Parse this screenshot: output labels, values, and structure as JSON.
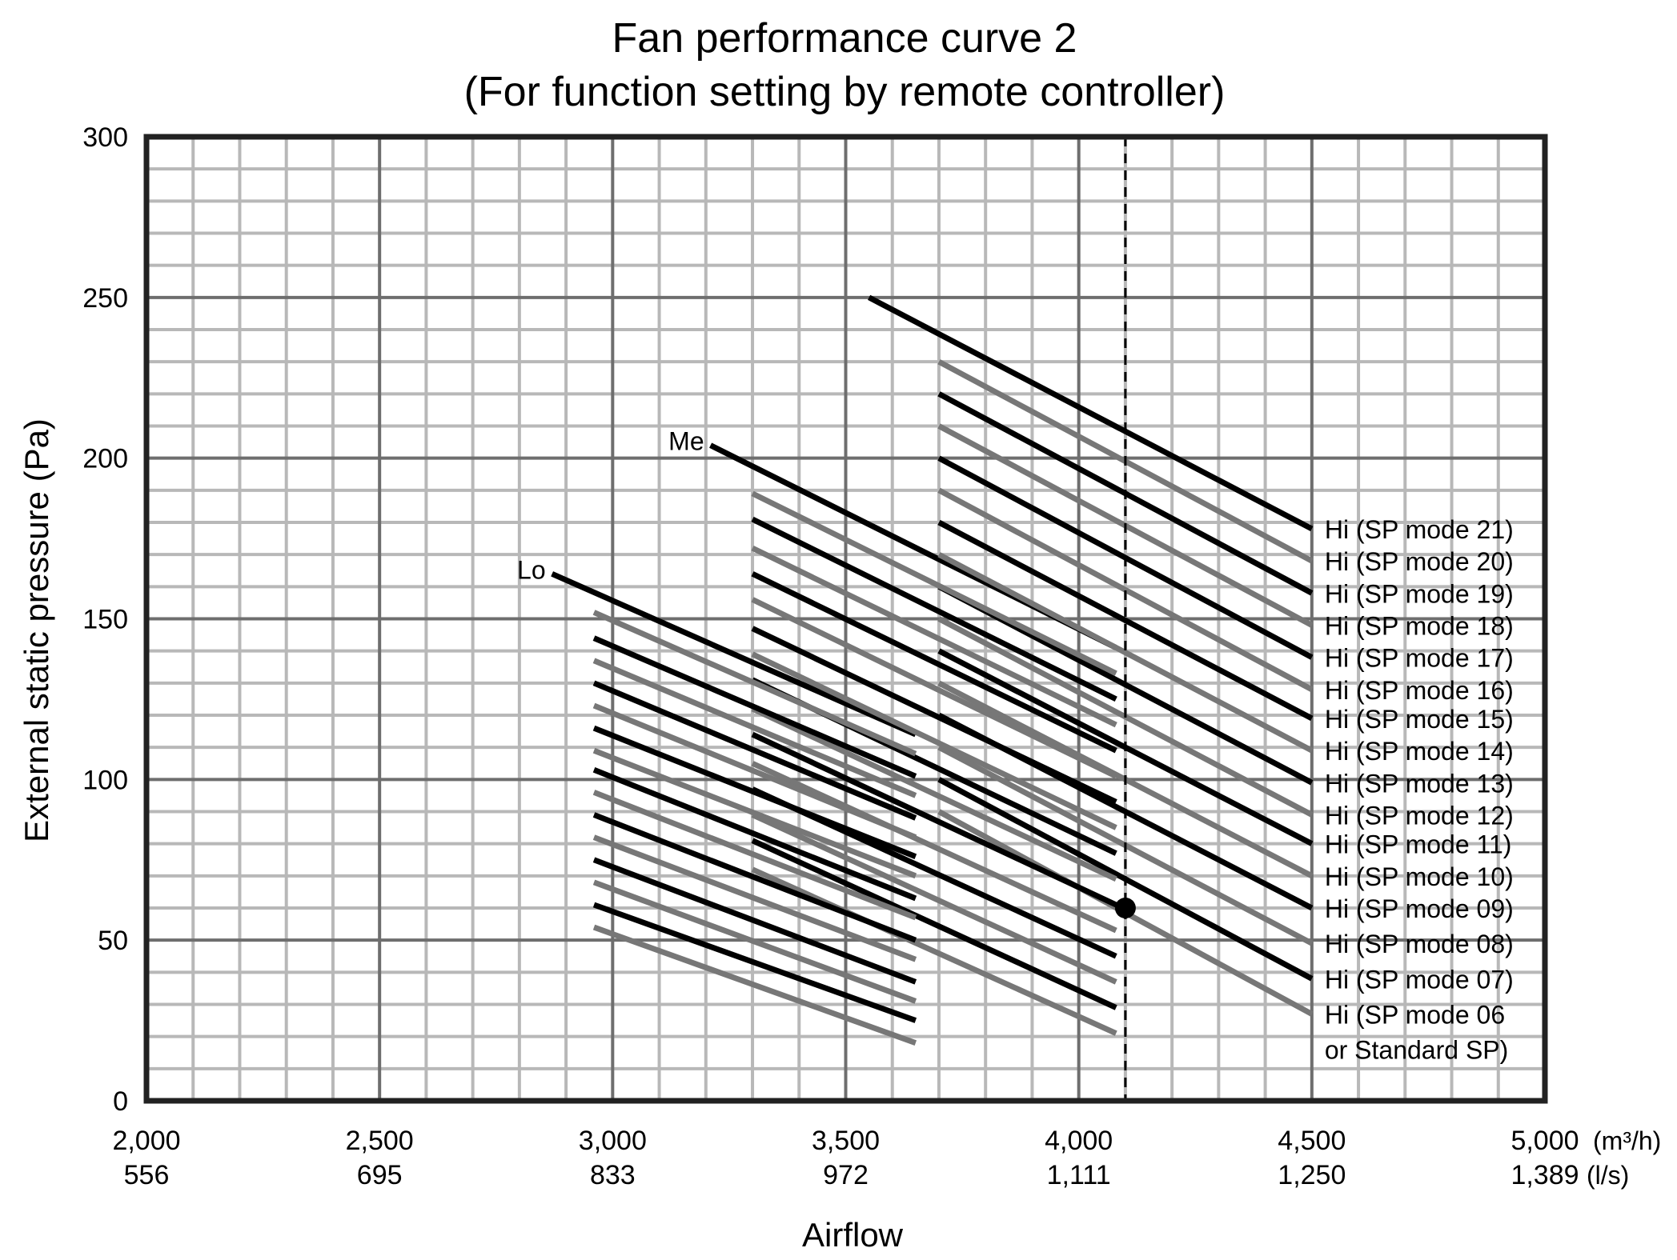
{
  "chart_data": {
    "type": "line",
    "title": [
      "Fan performance curve 2",
      "(For function setting by remote controller)"
    ],
    "ylabel": "External static pressure (Pa)",
    "xlabel": "Airflow",
    "xlim": [
      2000,
      5000
    ],
    "ylim": [
      0,
      300
    ],
    "grid": true,
    "xticks": [
      {
        "value": 2000,
        "label": "2,000",
        "label2": "556"
      },
      {
        "value": 2500,
        "label": "2,500",
        "label2": "695"
      },
      {
        "value": 3000,
        "label": "3,000",
        "label2": "833"
      },
      {
        "value": 3500,
        "label": "3,500",
        "label2": "972"
      },
      {
        "value": 4000,
        "label": "4,000",
        "label2": "1,111"
      },
      {
        "value": 4500,
        "label": "4,500",
        "label2": "1,250"
      },
      {
        "value": 5000,
        "label": "5,000",
        "label2": "1,389"
      }
    ],
    "xunits": [
      "(m³/h)",
      "(l/s)"
    ],
    "yticks": [
      {
        "value": 0,
        "label": "0"
      },
      {
        "value": 50,
        "label": "50"
      },
      {
        "value": 100,
        "label": "100"
      },
      {
        "value": 150,
        "label": "150"
      },
      {
        "value": 200,
        "label": "200"
      },
      {
        "value": 250,
        "label": "250"
      },
      {
        "value": 300,
        "label": "300"
      }
    ],
    "reference_line_x": 4100,
    "marker_point": {
      "x": 4100,
      "y": 60
    },
    "curves": [
      {
        "label": "Lo",
        "color": "#000000",
        "x": [
          2870,
          3650
        ],
        "y": [
          164,
          114
        ]
      },
      {
        "label": "Me",
        "color": "#000000",
        "x": [
          3210,
          4080
        ],
        "y": [
          204,
          141
        ]
      },
      {
        "label": "Hi (SP mode 21)",
        "color": "#000000",
        "x": [
          3550,
          4500
        ],
        "y": [
          250,
          178
        ]
      },
      {
        "label": "Hi (SP mode 20)",
        "color": "#777777",
        "x": [
          3700,
          4500
        ],
        "y": [
          230,
          168
        ]
      },
      {
        "label": "Hi (SP mode 19)",
        "color": "#000000",
        "x": [
          3700,
          4500
        ],
        "y": [
          220,
          158
        ]
      },
      {
        "label": "Hi (SP mode 18)",
        "color": "#777777",
        "x": [
          3700,
          4500
        ],
        "y": [
          210,
          148
        ]
      },
      {
        "label": "Hi (SP mode 17)",
        "color": "#000000",
        "x": [
          3700,
          4500
        ],
        "y": [
          200,
          138
        ]
      },
      {
        "label": "Hi (SP mode 16)",
        "color": "#777777",
        "x": [
          3700,
          4500
        ],
        "y": [
          190,
          128
        ]
      },
      {
        "label": "Hi (SP mode 15)",
        "color": "#000000",
        "x": [
          3700,
          4500
        ],
        "y": [
          180,
          119
        ]
      },
      {
        "label": "Hi (SP mode 14)",
        "color": "#777777",
        "x": [
          3700,
          4500
        ],
        "y": [
          170,
          109
        ]
      },
      {
        "label": "Hi (SP mode 13)",
        "color": "#000000",
        "x": [
          3700,
          4500
        ],
        "y": [
          160,
          99
        ]
      },
      {
        "label": "Hi (SP mode 12)",
        "color": "#777777",
        "x": [
          3700,
          4500
        ],
        "y": [
          150,
          89
        ]
      },
      {
        "label": "Hi (SP mode 11)",
        "color": "#000000",
        "x": [
          3700,
          4500
        ],
        "y": [
          140,
          80
        ]
      },
      {
        "label": "Hi (SP mode 10)",
        "color": "#777777",
        "x": [
          3700,
          4500
        ],
        "y": [
          130,
          70
        ]
      },
      {
        "label": "Hi (SP mode 09)",
        "color": "#000000",
        "x": [
          3700,
          4500
        ],
        "y": [
          120,
          60
        ]
      },
      {
        "label": "Hi (SP mode 08)",
        "color": "#777777",
        "x": [
          3700,
          4500
        ],
        "y": [
          110,
          49
        ]
      },
      {
        "label": "Hi (SP mode 07)",
        "color": "#000000",
        "x": [
          3700,
          4500
        ],
        "y": [
          100,
          38
        ]
      },
      {
        "label": "Hi (SP mode 06 / or Standard SP)",
        "color": "#777777",
        "x": [
          3700,
          4500
        ],
        "y": [
          90,
          27
        ]
      },
      {
        "label": "",
        "color": "#777777",
        "x": [
          3300,
          4080
        ],
        "y": [
          189,
          133
        ]
      },
      {
        "label": "",
        "color": "#000000",
        "x": [
          3300,
          4080
        ],
        "y": [
          181,
          125
        ]
      },
      {
        "label": "",
        "color": "#777777",
        "x": [
          3300,
          4080
        ],
        "y": [
          172,
          117
        ]
      },
      {
        "label": "",
        "color": "#000000",
        "x": [
          3300,
          4080
        ],
        "y": [
          164,
          109
        ]
      },
      {
        "label": "",
        "color": "#777777",
        "x": [
          3300,
          4080
        ],
        "y": [
          156,
          101
        ]
      },
      {
        "label": "",
        "color": "#000000",
        "x": [
          3300,
          4080
        ],
        "y": [
          147,
          93
        ]
      },
      {
        "label": "",
        "color": "#777777",
        "x": [
          3300,
          4080
        ],
        "y": [
          139,
          85
        ]
      },
      {
        "label": "",
        "color": "#000000",
        "x": [
          3300,
          4080
        ],
        "y": [
          131,
          77
        ]
      },
      {
        "label": "",
        "color": "#777777",
        "x": [
          3300,
          4080
        ],
        "y": [
          122,
          69
        ]
      },
      {
        "label": "",
        "color": "#000000",
        "x": [
          3300,
          4080
        ],
        "y": [
          114,
          61
        ]
      },
      {
        "label": "",
        "color": "#777777",
        "x": [
          3300,
          4080
        ],
        "y": [
          105,
          53
        ]
      },
      {
        "label": "",
        "color": "#000000",
        "x": [
          3300,
          4080
        ],
        "y": [
          97,
          45
        ]
      },
      {
        "label": "",
        "color": "#777777",
        "x": [
          3300,
          4080
        ],
        "y": [
          89,
          37
        ]
      },
      {
        "label": "",
        "color": "#000000",
        "x": [
          3300,
          4080
        ],
        "y": [
          81,
          29
        ]
      },
      {
        "label": "",
        "color": "#777777",
        "x": [
          3300,
          4080
        ],
        "y": [
          72,
          21
        ]
      },
      {
        "label": "",
        "color": "#777777",
        "x": [
          2960,
          3650
        ],
        "y": [
          152,
          108
        ]
      },
      {
        "label": "",
        "color": "#000000",
        "x": [
          2960,
          3650
        ],
        "y": [
          144,
          101
        ]
      },
      {
        "label": "",
        "color": "#777777",
        "x": [
          2960,
          3650
        ],
        "y": [
          137,
          95
        ]
      },
      {
        "label": "",
        "color": "#000000",
        "x": [
          2960,
          3650
        ],
        "y": [
          130,
          88
        ]
      },
      {
        "label": "",
        "color": "#777777",
        "x": [
          2960,
          3650
        ],
        "y": [
          123,
          82
        ]
      },
      {
        "label": "",
        "color": "#000000",
        "x": [
          2960,
          3650
        ],
        "y": [
          116,
          76
        ]
      },
      {
        "label": "",
        "color": "#777777",
        "x": [
          2960,
          3650
        ],
        "y": [
          109,
          70
        ]
      },
      {
        "label": "",
        "color": "#000000",
        "x": [
          2960,
          3650
        ],
        "y": [
          103,
          63
        ]
      },
      {
        "label": "",
        "color": "#777777",
        "x": [
          2960,
          3650
        ],
        "y": [
          96,
          57
        ]
      },
      {
        "label": "",
        "color": "#000000",
        "x": [
          2960,
          3650
        ],
        "y": [
          89,
          50
        ]
      },
      {
        "label": "",
        "color": "#777777",
        "x": [
          2960,
          3650
        ],
        "y": [
          82,
          44
        ]
      },
      {
        "label": "",
        "color": "#000000",
        "x": [
          2960,
          3650
        ],
        "y": [
          75,
          37
        ]
      },
      {
        "label": "",
        "color": "#777777",
        "x": [
          2960,
          3650
        ],
        "y": [
          68,
          31
        ]
      },
      {
        "label": "",
        "color": "#000000",
        "x": [
          2960,
          3650
        ],
        "y": [
          61,
          25
        ]
      },
      {
        "label": "",
        "color": "#777777",
        "x": [
          2960,
          3650
        ],
        "y": [
          54,
          18
        ]
      }
    ]
  }
}
